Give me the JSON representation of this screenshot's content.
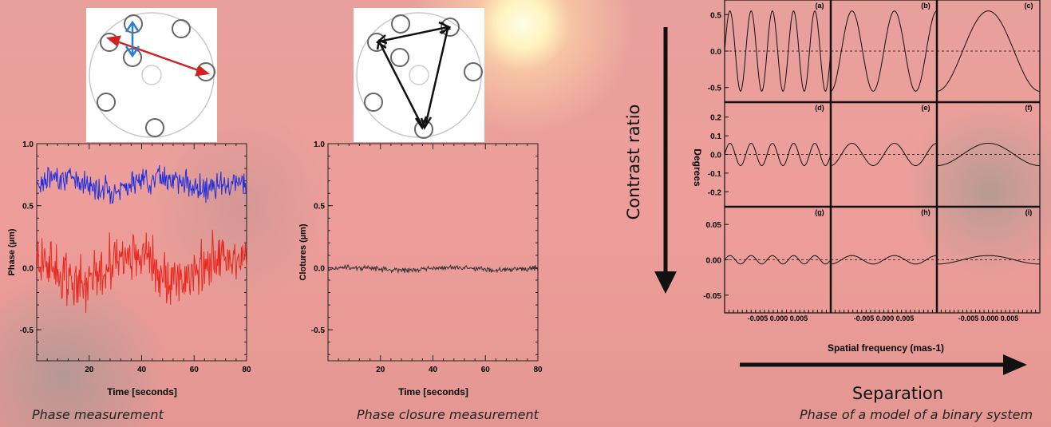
{
  "panels": [
    {
      "caption": "Phase measurement",
      "xlabel": "Time [seconds]",
      "ylabel": "Phase (µm)",
      "ytick_labels": [
        "1.0",
        "0.5",
        "0.0",
        "-0.5"
      ],
      "xtick_labels": [
        "20",
        "40",
        "60",
        "80"
      ]
    },
    {
      "caption": "Phase closure measurement",
      "xlabel": "Time [seconds]",
      "ylabel": "Clotures (µm)",
      "ytick_labels": [
        "1.0",
        "0.5",
        "0.0",
        "-0.5"
      ],
      "xtick_labels": [
        "20",
        "40",
        "60",
        "80"
      ]
    }
  ],
  "model": {
    "caption": "Phase of a model of a binary system",
    "xlabel": "Spatial frequency (mas-1)",
    "ylabel": "Degrees",
    "contrast_label": "Contrast ratio",
    "separation_label": "Separation",
    "panel_letters": [
      "(a)",
      "(b)",
      "(c)",
      "(d)",
      "(e)",
      "(f)",
      "(g)",
      "(h)",
      "(i)"
    ],
    "row_ticks": [
      [
        "0.5",
        "0.0",
        "-0.5"
      ],
      [
        "0.2",
        "0.1",
        "0.0",
        "-0.1",
        "-0.2"
      ],
      [
        "0.05",
        "0.00",
        "-0.05"
      ]
    ],
    "xtick_labels": [
      "-0.005 0.000 0.005",
      "-0.005 0.000 0.005",
      "-0.005 0.000 0.005"
    ]
  },
  "colors": {
    "series_blue": "#1f2fe0",
    "series_red": "#e8281e",
    "closure": "#333333",
    "arrow_red": "#d42020",
    "arrow_blue": "#2a7fd4"
  },
  "chart_data": [
    {
      "type": "line",
      "xlabel": "Time [seconds]",
      "ylabel": "Phase (µm)",
      "xlim": [
        0,
        80
      ],
      "ylim": [
        -0.75,
        1.0
      ],
      "series": [
        {
          "color": "#1f2fe0",
          "mean": 0.68,
          "spread": 0.15,
          "x_range": [
            0,
            80
          ]
        },
        {
          "color": "#e8281e",
          "mean": 0.0,
          "spread": 0.3,
          "x_range": [
            0,
            80
          ]
        }
      ]
    },
    {
      "type": "line",
      "xlabel": "Time [seconds]",
      "ylabel": "Clotures (µm)",
      "xlim": [
        0,
        80
      ],
      "ylim": [
        -0.75,
        1.0
      ],
      "series": [
        {
          "color": "#333333",
          "mean": -0.01,
          "spread": 0.03,
          "x_range": [
            0,
            80
          ]
        }
      ]
    }
  ]
}
